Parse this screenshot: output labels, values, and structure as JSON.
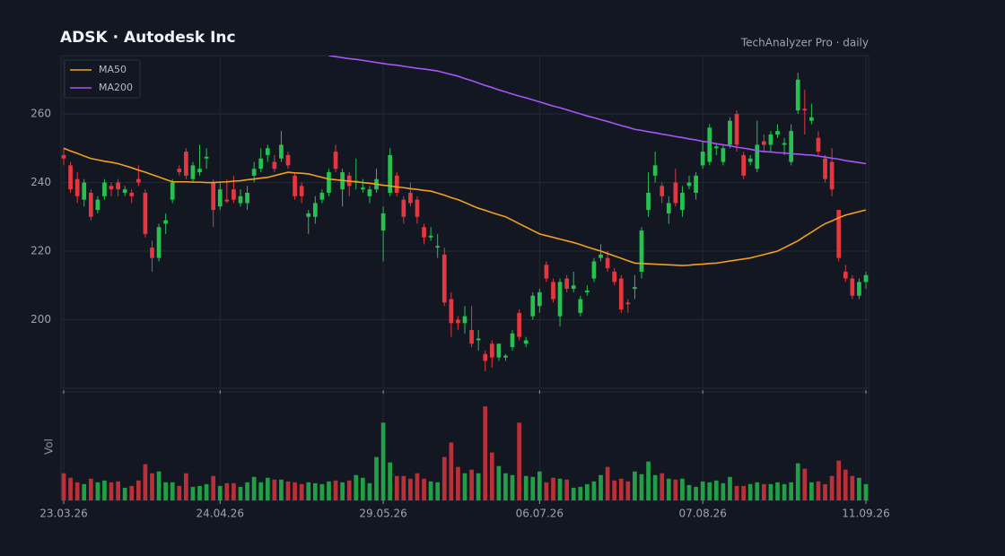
{
  "chart_data": {
    "type": "candlestick",
    "title": "ADSK  ·  Autodesk Inc",
    "subtitle": "TechAnalyzer Pro · daily",
    "volume_label": "Vol",
    "up_color": "#26c250",
    "down_color": "#e5373f",
    "grid": true,
    "legend": "top-left",
    "ylim": [
      180,
      277
    ],
    "yticks": [
      200,
      220,
      240,
      260
    ],
    "volume_ylim": [
      0,
      120
    ],
    "categories": [
      "23.03.26",
      null,
      null,
      null,
      null,
      null,
      null,
      null,
      null,
      null,
      null,
      null,
      null,
      null,
      null,
      null,
      null,
      null,
      null,
      null,
      null,
      null,
      null,
      "24.04.26",
      null,
      null,
      null,
      null,
      null,
      null,
      null,
      null,
      null,
      null,
      null,
      null,
      null,
      null,
      null,
      null,
      null,
      null,
      null,
      null,
      null,
      null,
      null,
      "29.05.26",
      null,
      null,
      null,
      null,
      null,
      null,
      null,
      null,
      null,
      null,
      null,
      null,
      null,
      null,
      null,
      null,
      null,
      null,
      null,
      null,
      null,
      null,
      "06.07.26",
      null,
      null,
      null,
      null,
      null,
      null,
      null,
      null,
      null,
      null,
      null,
      null,
      null,
      null,
      null,
      null,
      null,
      null,
      null,
      null,
      null,
      null,
      null,
      "07.08.26",
      null,
      null,
      null,
      null,
      null,
      null,
      null,
      null,
      null,
      null,
      null,
      null,
      null,
      null,
      null,
      null,
      null,
      null,
      null,
      null,
      null,
      null,
      null,
      "11.09.26"
    ],
    "open": [
      248,
      245,
      241,
      235,
      237,
      232,
      236,
      239,
      240,
      237,
      237,
      241,
      237,
      221,
      218,
      228,
      235,
      244,
      249,
      241,
      243,
      247,
      240,
      233,
      235,
      238,
      234,
      234,
      242,
      244,
      248,
      246,
      247,
      248,
      242,
      239,
      230,
      230,
      235,
      237,
      249,
      238,
      242,
      240,
      238,
      236,
      238,
      226,
      237,
      242,
      235,
      237,
      235,
      227,
      224,
      221,
      219,
      206,
      200,
      199,
      197,
      194,
      190,
      193,
      189,
      189,
      192,
      202,
      193,
      201,
      204,
      216,
      211,
      201,
      212,
      209,
      202,
      208,
      212,
      218,
      218,
      214,
      212,
      205,
      209,
      214,
      232,
      242,
      239,
      231,
      240,
      232,
      239,
      237,
      245,
      246,
      250,
      246,
      251,
      260,
      248,
      246,
      244,
      252,
      251,
      254,
      251,
      246,
      261,
      261.5,
      258,
      253,
      247,
      246,
      232,
      214,
      212,
      207,
      211
    ],
    "high": [
      250,
      246,
      243,
      241,
      238,
      236,
      241,
      240,
      241,
      239,
      238,
      245,
      238,
      223,
      228,
      231,
      241,
      245,
      250,
      246,
      251,
      250,
      241,
      240,
      241,
      242,
      238,
      239,
      246,
      250,
      251,
      248,
      255,
      249,
      243,
      240,
      232,
      236,
      238,
      244,
      251,
      244,
      243,
      247,
      241,
      239,
      244,
      233,
      250,
      243,
      236,
      240,
      236,
      228,
      227,
      225,
      221,
      208,
      201,
      204,
      204,
      197,
      191,
      194,
      193,
      190,
      197,
      203,
      195,
      208,
      209,
      217,
      212,
      212,
      213,
      214,
      207,
      210,
      218,
      222,
      220,
      215,
      213,
      206,
      213,
      227,
      243,
      249,
      240,
      236,
      244,
      239,
      242,
      243,
      252,
      257,
      251,
      251,
      259,
      261,
      249,
      248,
      258,
      254,
      255,
      257,
      253,
      257,
      272,
      267,
      263,
      255,
      248,
      250,
      232,
      216,
      213,
      212,
      214
    ],
    "low": [
      245,
      237,
      234,
      233,
      229,
      231,
      235,
      236,
      236,
      236,
      234,
      239,
      224,
      214,
      217,
      225,
      234,
      242,
      241,
      240,
      242,
      244,
      227,
      232,
      234,
      234,
      233,
      232,
      240,
      243,
      246,
      243,
      246,
      244,
      235,
      234,
      225,
      228,
      234,
      236,
      243,
      233,
      236,
      238,
      237,
      234,
      237,
      217,
      236,
      236,
      228,
      233,
      228,
      222,
      223,
      218,
      204,
      195,
      197,
      196,
      192,
      191,
      185,
      186,
      188,
      188,
      191,
      194,
      192,
      200,
      202,
      211,
      205,
      198,
      208,
      208,
      201,
      207,
      211,
      217,
      214,
      210,
      202,
      202,
      206,
      212,
      230,
      240,
      234,
      228,
      233,
      230,
      238,
      235,
      244,
      245,
      248,
      245,
      250,
      249,
      241,
      245,
      243,
      249,
      249,
      253,
      248,
      245,
      260,
      254,
      257,
      248,
      240,
      236,
      217,
      211,
      206,
      206,
      209
    ],
    "close": [
      247,
      238,
      236,
      240,
      230,
      235,
      240,
      238,
      238,
      238,
      236,
      240,
      225,
      218,
      227,
      229,
      240,
      243,
      242,
      245,
      244,
      247.5,
      232,
      238,
      234.5,
      235,
      236,
      237,
      244,
      247,
      250,
      244,
      251,
      245,
      236,
      236,
      231,
      234,
      237,
      243,
      244,
      243,
      239,
      240.5,
      238.5,
      238,
      241,
      231,
      248,
      237,
      230,
      234,
      230,
      224,
      224.5,
      221.5,
      205,
      199,
      199,
      201,
      193,
      194.5,
      188,
      189,
      193,
      189.5,
      196,
      195,
      194,
      207,
      208,
      212,
      206,
      211,
      209,
      210,
      206,
      208.5,
      217,
      219,
      215,
      211,
      203,
      204.5,
      209.5,
      226,
      237,
      245,
      236,
      234,
      234,
      237,
      240,
      242,
      249,
      256,
      250.5,
      250,
      258,
      251,
      242,
      247,
      251,
      251,
      254,
      255,
      251.5,
      255,
      270,
      261,
      259,
      249,
      241,
      238,
      218,
      212,
      207,
      211,
      213
    ],
    "volume": [
      30,
      25,
      20,
      18,
      24,
      20,
      22,
      20,
      21,
      14,
      16,
      22,
      40,
      30,
      32,
      20,
      20,
      16,
      30,
      15,
      16,
      18,
      27,
      16,
      19,
      19,
      15,
      20,
      26,
      20,
      25,
      23,
      23,
      21,
      20,
      18,
      20,
      19,
      18,
      21,
      22,
      20,
      22,
      28,
      25,
      19,
      48,
      86,
      42,
      27,
      27,
      24,
      30,
      24,
      21,
      20,
      48,
      64,
      37,
      30,
      34,
      30,
      104,
      53,
      38,
      30,
      28,
      86,
      27,
      26,
      32,
      20,
      25,
      24,
      23,
      14,
      15,
      18,
      21,
      28,
      37,
      22,
      24,
      21,
      32,
      29,
      43,
      28,
      30,
      24,
      23,
      24,
      17,
      15,
      21,
      20,
      22,
      19,
      26,
      16,
      16,
      18,
      20,
      18,
      18,
      20,
      18,
      20,
      41,
      35,
      20,
      21,
      18,
      27,
      44,
      34,
      27,
      25,
      18
    ],
    "series": [
      {
        "name": "MA50",
        "color": "#f0a020",
        "values": [
          250,
          249.2,
          248.5,
          247.7,
          247,
          246.6,
          246.2,
          245.9,
          245.5,
          244.9,
          244.3,
          243.6,
          243,
          242.3,
          241.6,
          240.9,
          240.2,
          240.2,
          240.2,
          240.1,
          240.1,
          240,
          240,
          240.1,
          240.2,
          240.4,
          240.5,
          240.8,
          241,
          241.3,
          241.5,
          242,
          242.5,
          243,
          242.8,
          242.7,
          242.5,
          242,
          241.5,
          241,
          240.8,
          240.6,
          240.4,
          240.2,
          240,
          239.8,
          239.5,
          239.2,
          239,
          238.7,
          238.5,
          238.2,
          238,
          237.7,
          237.5,
          236.9,
          236.3,
          235.6,
          235,
          234.2,
          233.3,
          232.5,
          231.9,
          231.2,
          230.6,
          230,
          229,
          228,
          227,
          226,
          225,
          224.5,
          224,
          223.5,
          223,
          222.5,
          221.9,
          221.2,
          220.6,
          220,
          219.3,
          218.6,
          217.9,
          217.2,
          216.5,
          216.4,
          216.3,
          216.2,
          216.1,
          216,
          215.9,
          215.8,
          215.9,
          216.1,
          216.2,
          216.4,
          216.5,
          216.8,
          217.1,
          217.4,
          217.7,
          218,
          218.5,
          219,
          219.5,
          220,
          221,
          222,
          223,
          224.3,
          225.5,
          226.8,
          228,
          228.8,
          229.7,
          230.5,
          231,
          231.5,
          232
        ]
      },
      {
        "name": "MA200",
        "color": "#a855f7",
        "values": [
          null,
          null,
          null,
          null,
          null,
          null,
          null,
          null,
          null,
          null,
          null,
          null,
          null,
          null,
          null,
          null,
          null,
          null,
          null,
          null,
          null,
          null,
          null,
          null,
          null,
          null,
          null,
          null,
          null,
          null,
          null,
          null,
          null,
          null,
          null,
          null,
          null,
          null,
          null,
          277,
          276.7,
          276.4,
          276.1,
          275.9,
          275.6,
          275.3,
          275,
          274.7,
          274.4,
          274.2,
          273.9,
          273.6,
          273.3,
          273.1,
          272.8,
          272.5,
          272,
          271.5,
          271,
          270.3,
          269.7,
          269,
          268.3,
          267.7,
          267,
          266.4,
          265.8,
          265.2,
          264.7,
          264.1,
          263.5,
          262.9,
          262.3,
          261.8,
          261.2,
          260.6,
          260,
          259.4,
          258.9,
          258.3,
          257.8,
          257.2,
          256.6,
          256.1,
          255.5,
          255.2,
          254.8,
          254.5,
          254.1,
          253.8,
          253.4,
          253.1,
          252.7,
          252.4,
          252,
          251.7,
          251.3,
          251,
          250.7,
          250.3,
          250,
          249.7,
          249.3,
          249,
          248.9,
          248.7,
          248.6,
          248.4,
          248.3,
          248.1,
          248,
          247.7,
          247.4,
          247.1,
          246.8,
          246.4,
          246.1,
          245.8,
          245.5
        ]
      }
    ]
  }
}
